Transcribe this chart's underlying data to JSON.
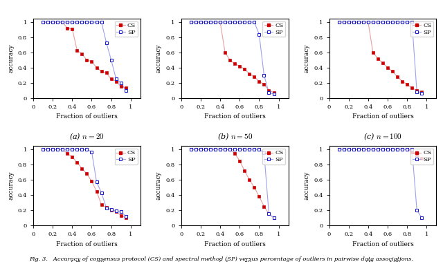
{
  "subplots": [
    {
      "title": "(a) $n = 20$",
      "CS_x": [
        0.1,
        0.15,
        0.2,
        0.25,
        0.3,
        0.35,
        0.4,
        0.45,
        0.5,
        0.55,
        0.6,
        0.65,
        0.7,
        0.75,
        0.8,
        0.85,
        0.9,
        0.95
      ],
      "CS_y": [
        1.0,
        1.0,
        1.0,
        1.0,
        1.0,
        0.92,
        0.91,
        0.63,
        0.58,
        0.5,
        0.48,
        0.4,
        0.35,
        0.33,
        0.25,
        0.22,
        0.15,
        0.13
      ],
      "SP_x": [
        0.1,
        0.15,
        0.2,
        0.25,
        0.3,
        0.35,
        0.4,
        0.45,
        0.5,
        0.55,
        0.6,
        0.65,
        0.7,
        0.75,
        0.8,
        0.85,
        0.9,
        0.95
      ],
      "SP_y": [
        1.0,
        1.0,
        1.0,
        1.0,
        1.0,
        1.0,
        1.0,
        1.0,
        1.0,
        1.0,
        1.0,
        1.0,
        1.0,
        0.73,
        0.5,
        0.25,
        0.2,
        0.1
      ]
    },
    {
      "title": "(b) $n = 50$",
      "CS_x": [
        0.1,
        0.15,
        0.2,
        0.25,
        0.3,
        0.35,
        0.4,
        0.45,
        0.5,
        0.55,
        0.6,
        0.65,
        0.7,
        0.75,
        0.8,
        0.85,
        0.9,
        0.95
      ],
      "CS_y": [
        1.0,
        1.0,
        1.0,
        1.0,
        1.0,
        1.0,
        1.0,
        0.6,
        0.5,
        0.45,
        0.42,
        0.38,
        0.32,
        0.28,
        0.22,
        0.18,
        0.1,
        0.07
      ],
      "SP_x": [
        0.1,
        0.15,
        0.2,
        0.25,
        0.3,
        0.35,
        0.4,
        0.45,
        0.5,
        0.55,
        0.6,
        0.65,
        0.7,
        0.75,
        0.8,
        0.85,
        0.9,
        0.95
      ],
      "SP_y": [
        1.0,
        1.0,
        1.0,
        1.0,
        1.0,
        1.0,
        1.0,
        1.0,
        1.0,
        1.0,
        1.0,
        1.0,
        1.0,
        1.0,
        0.84,
        0.3,
        0.07,
        0.05
      ]
    },
    {
      "title": "(c) $n = 100$",
      "CS_x": [
        0.1,
        0.15,
        0.2,
        0.25,
        0.3,
        0.35,
        0.4,
        0.45,
        0.5,
        0.55,
        0.6,
        0.65,
        0.7,
        0.75,
        0.8,
        0.85,
        0.9,
        0.95
      ],
      "CS_y": [
        1.0,
        1.0,
        1.0,
        1.0,
        1.0,
        1.0,
        1.0,
        0.6,
        0.52,
        0.46,
        0.4,
        0.35,
        0.28,
        0.22,
        0.18,
        0.13,
        0.1,
        0.08
      ],
      "SP_x": [
        0.1,
        0.15,
        0.2,
        0.25,
        0.3,
        0.35,
        0.4,
        0.45,
        0.5,
        0.55,
        0.6,
        0.65,
        0.7,
        0.75,
        0.8,
        0.85,
        0.9,
        0.95
      ],
      "SP_y": [
        1.0,
        1.0,
        1.0,
        1.0,
        1.0,
        1.0,
        1.0,
        1.0,
        1.0,
        1.0,
        1.0,
        1.0,
        1.0,
        1.0,
        1.0,
        1.0,
        0.08,
        0.06
      ]
    },
    {
      "title": "(d) $n = 20$",
      "CS_x": [
        0.1,
        0.15,
        0.2,
        0.25,
        0.3,
        0.35,
        0.4,
        0.45,
        0.5,
        0.55,
        0.6,
        0.65,
        0.7,
        0.75,
        0.8,
        0.85,
        0.9,
        0.95
      ],
      "CS_y": [
        1.0,
        1.0,
        1.0,
        1.0,
        1.0,
        0.95,
        0.9,
        0.83,
        0.75,
        0.68,
        0.58,
        0.45,
        0.27,
        0.24,
        0.2,
        0.18,
        0.13,
        0.1
      ],
      "SP_x": [
        0.1,
        0.15,
        0.2,
        0.25,
        0.3,
        0.35,
        0.4,
        0.45,
        0.5,
        0.55,
        0.6,
        0.65,
        0.7,
        0.75,
        0.8,
        0.85,
        0.9,
        0.95
      ],
      "SP_y": [
        1.0,
        1.0,
        1.0,
        1.0,
        1.0,
        1.0,
        1.0,
        1.0,
        1.0,
        1.0,
        0.97,
        0.57,
        0.43,
        0.23,
        0.21,
        0.19,
        0.18,
        0.12
      ]
    },
    {
      "title": "(e) $n = 50$",
      "CS_x": [
        0.1,
        0.15,
        0.2,
        0.25,
        0.3,
        0.35,
        0.4,
        0.45,
        0.5,
        0.55,
        0.6,
        0.65,
        0.7,
        0.75,
        0.8,
        0.85,
        0.9,
        0.95
      ],
      "CS_y": [
        1.0,
        1.0,
        1.0,
        1.0,
        1.0,
        1.0,
        1.0,
        1.0,
        1.0,
        0.95,
        0.85,
        0.72,
        0.6,
        0.5,
        0.38,
        0.25,
        0.15,
        0.1
      ],
      "SP_x": [
        0.1,
        0.15,
        0.2,
        0.25,
        0.3,
        0.35,
        0.4,
        0.45,
        0.5,
        0.55,
        0.6,
        0.65,
        0.7,
        0.75,
        0.8,
        0.85,
        0.9,
        0.95
      ],
      "SP_y": [
        1.0,
        1.0,
        1.0,
        1.0,
        1.0,
        1.0,
        1.0,
        1.0,
        1.0,
        1.0,
        1.0,
        1.0,
        1.0,
        1.0,
        1.0,
        0.96,
        0.15,
        0.1
      ]
    },
    {
      "title": "(f) $n = 100$",
      "CS_x": [
        0.1,
        0.15,
        0.2,
        0.25,
        0.3,
        0.35,
        0.4,
        0.45,
        0.5,
        0.55,
        0.6,
        0.65,
        0.7,
        0.75,
        0.8,
        0.85,
        0.9,
        0.95
      ],
      "CS_y": [
        1.0,
        1.0,
        1.0,
        1.0,
        1.0,
        1.0,
        1.0,
        1.0,
        1.0,
        1.0,
        1.0,
        1.0,
        1.0,
        1.0,
        1.0,
        0.97,
        0.93,
        0.88
      ],
      "SP_x": [
        0.1,
        0.15,
        0.2,
        0.25,
        0.3,
        0.35,
        0.4,
        0.45,
        0.5,
        0.55,
        0.6,
        0.65,
        0.7,
        0.75,
        0.8,
        0.85,
        0.9,
        0.95
      ],
      "SP_y": [
        1.0,
        1.0,
        1.0,
        1.0,
        1.0,
        1.0,
        1.0,
        1.0,
        1.0,
        1.0,
        1.0,
        1.0,
        1.0,
        1.0,
        1.0,
        1.0,
        0.2,
        0.1
      ]
    }
  ],
  "CS_line_color": "#e8a0a0",
  "CS_marker_color": "#cc0000",
  "SP_line_color": "#a0a0e8",
  "SP_marker_color": "#2020cc",
  "xlabel": "Fraction of outliers",
  "ylabel": "accuracy",
  "figcaption": "Fig. 3.   Accuracy of consensus protocol (CS) and spectral method (SP) versus percentage of outliers in pairwise data associations.",
  "xlim": [
    0,
    1.1
  ],
  "ylim": [
    0,
    1.05
  ],
  "xticks": [
    0,
    0.2,
    0.4,
    0.6,
    0.8,
    1
  ],
  "yticks": [
    0,
    0.2,
    0.4,
    0.6,
    0.8,
    1
  ]
}
